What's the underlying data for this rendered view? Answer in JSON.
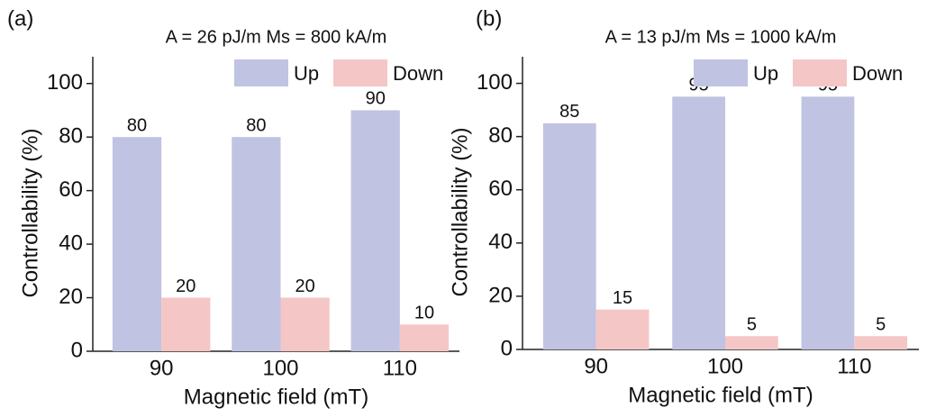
{
  "chart_data": [
    {
      "type": "bar",
      "panel_label": "(a)",
      "title": "A = 26 pJ/m  Ms = 800 kA/m",
      "x_label": "Magnetic field (mT)",
      "y_label": "Controllability (%)",
      "categories": [
        "90",
        "100",
        "110"
      ],
      "series": [
        {
          "name": "Up",
          "color": "#c0c3e2",
          "values": [
            80,
            80,
            90
          ]
        },
        {
          "name": "Down",
          "color": "#f5c6c6",
          "values": [
            20,
            20,
            10
          ]
        }
      ],
      "ylim": [
        0,
        110
      ],
      "yticks": [
        0,
        20,
        40,
        60,
        80,
        100
      ],
      "legend": "upper right"
    },
    {
      "type": "bar",
      "panel_label": "(b)",
      "title": "A = 13 pJ/m  Ms = 1000 kA/m",
      "x_label": "Magnetic field (mT)",
      "y_label": "Controllability (%)",
      "categories": [
        "90",
        "100",
        "110"
      ],
      "series": [
        {
          "name": "Up",
          "color": "#c0c3e2",
          "values": [
            85,
            95,
            95
          ]
        },
        {
          "name": "Down",
          "color": "#f5c6c6",
          "values": [
            15,
            5,
            5
          ]
        }
      ],
      "ylim": [
        0,
        110
      ],
      "yticks": [
        0,
        20,
        40,
        60,
        80,
        100
      ],
      "legend": "upper right"
    }
  ]
}
